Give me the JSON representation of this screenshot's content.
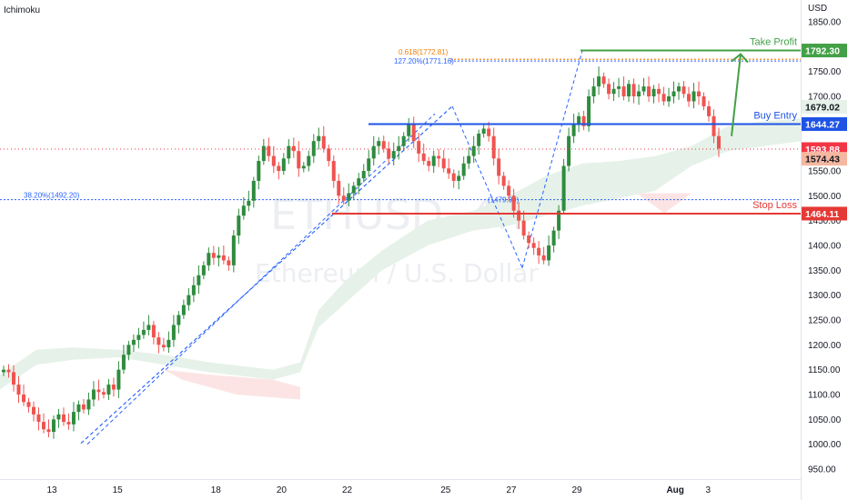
{
  "indicator_label": "Ichimoku",
  "currency_label": "USD",
  "watermark": {
    "symbol": "ETHUSD, 4h",
    "name": "Ethereum / U.S. Dollar"
  },
  "colors": {
    "bull": "#26a69a",
    "bull_candle": "#2e8b3e",
    "bear": "#ef5350",
    "take_profit": "#43a047",
    "buy_entry": "#1e53e5",
    "stop_loss": "#e53935",
    "fib": "#2962ff",
    "fib_orange": "#f57c00",
    "cloud_green": "#e6f2e9",
    "cloud_red": "#fde4e4",
    "current_price": "#f23645",
    "last_label": "#f5b7a0"
  },
  "chart_data": {
    "type": "candlestick",
    "symbol": "ETHUSD",
    "ylim": [
      925,
      1860
    ],
    "y_ticks": [
      950,
      1000,
      1050,
      1100,
      1150,
      1200,
      1250,
      1300,
      1350,
      1400,
      1450,
      1500,
      1550,
      1600,
      1650,
      1700,
      1750,
      1800,
      1850
    ],
    "y_tick_labels": [
      "950.00",
      "1000.00",
      "1050.00",
      "1100.00",
      "1150.00",
      "1200.00",
      "1250.00",
      "1300.00",
      "1350.00",
      "1400.00",
      "1450.00",
      "1500.00",
      "1550.00",
      "1600.00",
      "1650.00",
      "1700.00",
      "1750.00",
      "1800.00",
      "1850.00"
    ],
    "x_ticks": [
      {
        "label": "13",
        "day": 13
      },
      {
        "label": "15",
        "day": 15
      },
      {
        "label": "18",
        "day": 18
      },
      {
        "label": "20",
        "day": 20
      },
      {
        "label": "22",
        "day": 22
      },
      {
        "label": "25",
        "day": 25
      },
      {
        "label": "27",
        "day": 27
      },
      {
        "label": "29",
        "day": 29
      },
      {
        "label": "Aug",
        "day": 32
      },
      {
        "label": "3",
        "day": 33
      }
    ],
    "price_labels": [
      {
        "name": "Take Profit",
        "value": 1792.3,
        "text": "1792.30",
        "color_key": "take_profit",
        "text_color": "#ffffff"
      },
      {
        "name": "",
        "value": 1679.02,
        "text": "1679.02",
        "color_key": "cloud_green",
        "text_color": "#131722"
      },
      {
        "name": "Buy Entry",
        "value": 1644.27,
        "text": "1644.27",
        "color_key": "buy_entry",
        "text_color": "#ffffff"
      },
      {
        "name": "",
        "value": 1593.88,
        "text": "1593.88",
        "color_key": "current_price",
        "text_color": "#ffffff"
      },
      {
        "name": "",
        "value": 1574.43,
        "text": "1574.43",
        "color_key": "last_label",
        "text_color": "#131722"
      },
      {
        "name": "Stop Loss",
        "value": 1464.11,
        "text": "1464.11",
        "color_key": "stop_loss",
        "text_color": "#ffffff"
      }
    ],
    "levels": [
      {
        "label": "Take Profit",
        "value": 1792.3,
        "color_key": "take_profit"
      },
      {
        "label": "Buy Entry",
        "value": 1644.27,
        "color_key": "buy_entry"
      },
      {
        "label": "Stop Loss",
        "value": 1464.11,
        "color_key": "stop_loss"
      }
    ],
    "fib_annotations": [
      {
        "text": "0.618(1772.81)",
        "value": 1772.81,
        "color_key": "fib_orange"
      },
      {
        "text": "127.20%(1771.16)",
        "value": 1771.16,
        "color_key": "fib"
      },
      {
        "text": "38.20%(1492.20)",
        "value": 1492.2,
        "color_key": "fib"
      },
      {
        "text": "(1479.99)",
        "value": 1479.99,
        "color_key": "fib"
      }
    ],
    "closes": [
      1150,
      1145,
      1120,
      1100,
      1085,
      1075,
      1060,
      1045,
      1030,
      1025,
      1050,
      1060,
      1045,
      1040,
      1065,
      1080,
      1070,
      1090,
      1110,
      1105,
      1100,
      1120,
      1110,
      1150,
      1180,
      1200,
      1210,
      1220,
      1230,
      1240,
      1215,
      1200,
      1195,
      1210,
      1240,
      1260,
      1280,
      1300,
      1320,
      1340,
      1360,
      1385,
      1375,
      1380,
      1370,
      1360,
      1420,
      1460,
      1480,
      1490,
      1530,
      1570,
      1600,
      1580,
      1560,
      1550,
      1575,
      1600,
      1590,
      1555,
      1560,
      1580,
      1610,
      1620,
      1595,
      1570,
      1530,
      1500,
      1490,
      1505,
      1520,
      1535,
      1550,
      1575,
      1600,
      1610,
      1595,
      1575,
      1590,
      1600,
      1620,
      1645,
      1610,
      1585,
      1570,
      1560,
      1580,
      1575,
      1555,
      1545,
      1530,
      1540,
      1565,
      1580,
      1600,
      1625,
      1635,
      1620,
      1575,
      1540,
      1520,
      1500,
      1470,
      1450,
      1420,
      1405,
      1395,
      1380,
      1370,
      1400,
      1430,
      1470,
      1560,
      1620,
      1645,
      1660,
      1640,
      1700,
      1720,
      1740,
      1725,
      1705,
      1715,
      1720,
      1700,
      1725,
      1700,
      1710,
      1720,
      1700,
      1715,
      1705,
      1690,
      1700,
      1710,
      1720,
      1705,
      1690,
      1710,
      1700,
      1680,
      1660,
      1620,
      1595
    ]
  }
}
